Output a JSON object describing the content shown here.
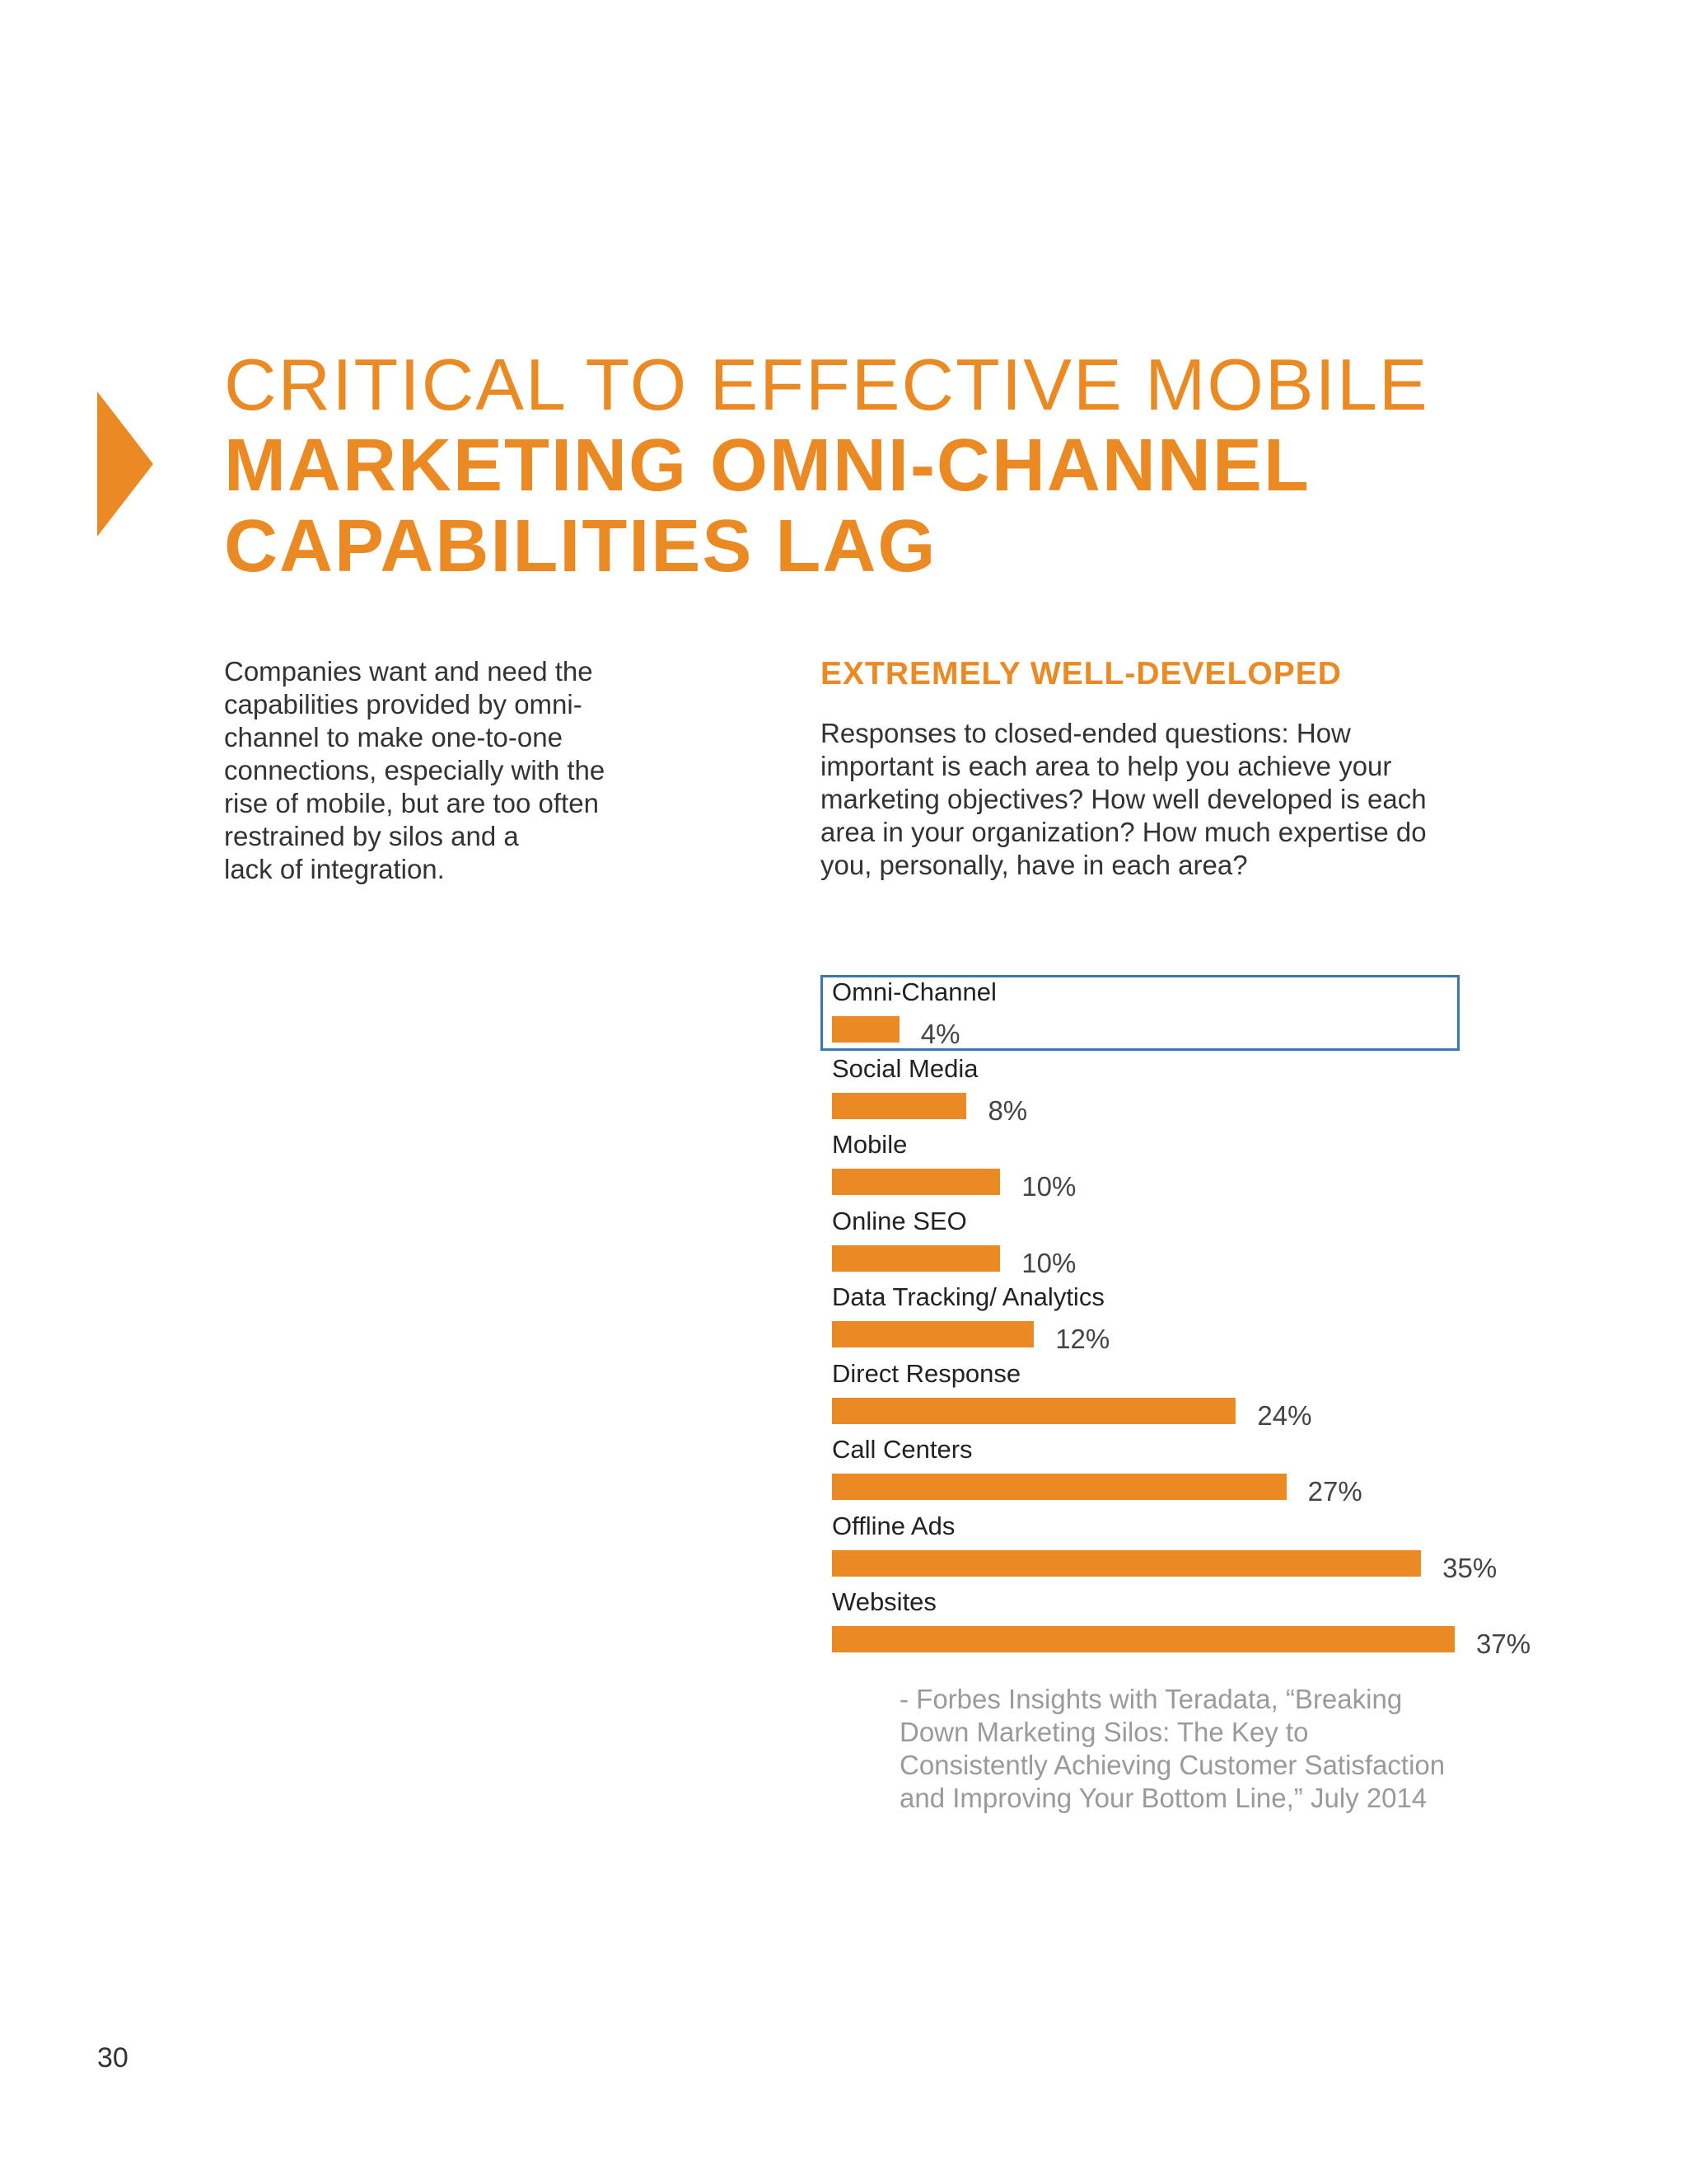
{
  "page": {
    "title_line1": "CRITICAL TO EFFECTIVE MOBILE",
    "title_line2": "MARKETING OMNI-CHANNEL",
    "title_line3": "CAPABILITIES LAG",
    "intro": "Companies want and need the\ncapabilities provided by omni-\nchannel to make one-to-one\nconnections, especially with the\nrise of mobile, but are too often\nrestrained by silos and a\nlack of integration.",
    "chart_heading": "EXTREMELY WELL-DEVELOPED",
    "chart_description": "Responses to closed-ended questions: How important is each area to help you achieve your marketing objectives? How well developed is each area in your organization? How much expertise do you, personally, have in each area?",
    "citation": "- Forbes Insights with Teradata, “Breaking Down Marketing Silos: The Key to Consistently Achieving Customer Satisfaction and Improving Your Bottom Line,” July 2014",
    "page_number": "30",
    "accent_color": "#eb8a23",
    "highlight_color": "#3a77b3"
  },
  "chart_data": {
    "type": "bar",
    "orientation": "horizontal",
    "title": "EXTREMELY WELL-DEVELOPED",
    "categories": [
      "Omni-Channel",
      "Social Media",
      "Mobile",
      "Online SEO",
      "Data Tracking/ Analytics",
      "Direct Response",
      "Call Centers",
      "Offline Ads",
      "Websites"
    ],
    "values": [
      4,
      8,
      10,
      10,
      12,
      24,
      27,
      35,
      37
    ],
    "value_labels": [
      "4%",
      "8%",
      "10%",
      "10%",
      "12%",
      "24%",
      "27%",
      "35%",
      "37%"
    ],
    "unit": "%",
    "highlighted_category": "Omni-Channel",
    "xlim": [
      0,
      37
    ],
    "grid": false,
    "legend": "none"
  }
}
